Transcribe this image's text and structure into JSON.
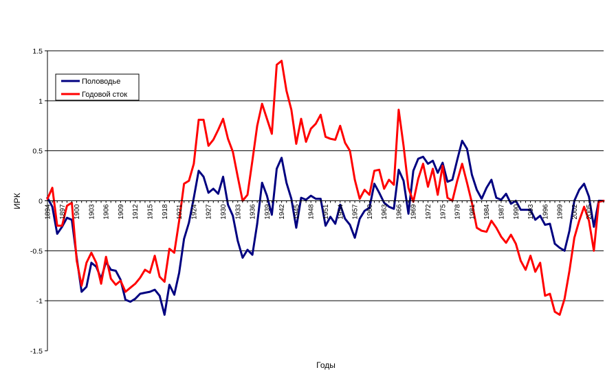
{
  "chart_data": {
    "type": "line",
    "title": "",
    "xlabel": "Годы",
    "ylabel": "ИРК",
    "ylim": [
      -1.5,
      1.5
    ],
    "yticks": [
      1.5,
      1,
      0.5,
      0,
      -0.5,
      -1,
      -1.5
    ],
    "ytick_labels": [
      "1.5",
      "1",
      "0.5",
      "0",
      "-0.5",
      "-1",
      "-1.5"
    ],
    "xlim": [
      1894,
      2008
    ],
    "xticks": [
      1894,
      1897,
      1900,
      1903,
      1906,
      1909,
      1912,
      1915,
      1918,
      1921,
      1924,
      1927,
      1930,
      1933,
      1936,
      1939,
      1942,
      1945,
      1948,
      1951,
      1954,
      1957,
      1960,
      1963,
      1966,
      1969,
      1972,
      1975,
      1978,
      1981,
      1984,
      1987,
      1990,
      1993,
      1996,
      1999,
      2002,
      2005
    ],
    "grid": true,
    "legend_position": "top-left",
    "colors": {
      "Половодье": "#000080",
      "Годовой сток": "#ff0000"
    },
    "series": [
      {
        "name": "Половодье",
        "x": [
          1894,
          1895,
          1896,
          1897,
          1898,
          1899,
          1900,
          1901,
          1902,
          1903,
          1904,
          1905,
          1906,
          1907,
          1908,
          1909,
          1910,
          1911,
          1912,
          1913,
          1914,
          1915,
          1916,
          1917,
          1918,
          1919,
          1920,
          1921,
          1922,
          1923,
          1924,
          1925,
          1926,
          1927,
          1928,
          1929,
          1930,
          1931,
          1932,
          1933,
          1934,
          1935,
          1936,
          1937,
          1938,
          1939,
          1940,
          1941,
          1942,
          1943,
          1944,
          1945,
          1946,
          1947,
          1948,
          1949,
          1950,
          1951,
          1952,
          1953,
          1954,
          1955,
          1956,
          1957,
          1958,
          1959,
          1960,
          1961,
          1962,
          1963,
          1964,
          1965,
          1966,
          1967,
          1968,
          1969,
          1970,
          1971,
          1972,
          1973,
          1974,
          1975,
          1976,
          1977,
          1978,
          1979,
          1980,
          1981,
          1982,
          1983,
          1984,
          1985,
          1986,
          1987,
          1988,
          1989,
          1990,
          1991,
          1992,
          1993,
          1994,
          1995,
          1996,
          1997,
          1998,
          1999,
          2000,
          2001,
          2002,
          2003,
          2004,
          2005,
          2006,
          2007,
          2008
        ],
        "values": [
          0.03,
          -0.06,
          -0.33,
          -0.26,
          -0.17,
          -0.19,
          -0.57,
          -0.91,
          -0.86,
          -0.62,
          -0.66,
          -0.78,
          -0.61,
          -0.69,
          -0.7,
          -0.79,
          -0.99,
          -1.01,
          -0.98,
          -0.93,
          -0.92,
          -0.91,
          -0.89,
          -0.95,
          -1.14,
          -0.84,
          -0.94,
          -0.72,
          -0.38,
          -0.22,
          0.03,
          0.3,
          0.24,
          0.08,
          0.12,
          0.07,
          0.24,
          -0.04,
          -0.15,
          -0.4,
          -0.57,
          -0.49,
          -0.54,
          -0.23,
          0.18,
          0.05,
          -0.14,
          0.32,
          0.43,
          0.18,
          0.02,
          -0.27,
          0.03,
          0.01,
          0.05,
          0.02,
          0.02,
          -0.25,
          -0.16,
          -0.23,
          -0.04,
          -0.18,
          -0.24,
          -0.37,
          -0.18,
          -0.1,
          -0.07,
          0.17,
          0.08,
          -0.02,
          -0.06,
          -0.08,
          0.31,
          0.2,
          -0.13,
          0.3,
          0.42,
          0.44,
          0.37,
          0.4,
          0.28,
          0.38,
          0.19,
          0.21,
          0.41,
          0.6,
          0.52,
          0.26,
          0.11,
          0.02,
          0.13,
          0.21,
          0.03,
          0.01,
          0.07,
          -0.03,
          0.0,
          -0.09,
          -0.09,
          -0.09,
          -0.19,
          -0.15,
          -0.24,
          -0.23,
          -0.43,
          -0.47,
          -0.5,
          -0.3,
          0.0,
          0.11,
          0.17,
          0.04,
          -0.26,
          0.0,
          0.0
        ]
      },
      {
        "name": "Годовой сток",
        "x": [
          1894,
          1895,
          1896,
          1897,
          1898,
          1899,
          1900,
          1901,
          1902,
          1903,
          1904,
          1905,
          1906,
          1907,
          1908,
          1909,
          1910,
          1911,
          1912,
          1913,
          1914,
          1915,
          1916,
          1917,
          1918,
          1919,
          1920,
          1921,
          1922,
          1923,
          1924,
          1925,
          1926,
          1927,
          1928,
          1929,
          1930,
          1931,
          1932,
          1933,
          1934,
          1935,
          1936,
          1937,
          1938,
          1939,
          1940,
          1941,
          1942,
          1943,
          1944,
          1945,
          1946,
          1947,
          1948,
          1949,
          1950,
          1951,
          1952,
          1953,
          1954,
          1955,
          1956,
          1957,
          1958,
          1959,
          1960,
          1961,
          1962,
          1963,
          1964,
          1965,
          1966,
          1967,
          1968,
          1969,
          1970,
          1971,
          1972,
          1973,
          1974,
          1975,
          1976,
          1977,
          1978,
          1979,
          1980,
          1981,
          1982,
          1983,
          1984,
          1985,
          1986,
          1987,
          1988,
          1989,
          1990,
          1991,
          1992,
          1993,
          1994,
          1995,
          1996,
          1997,
          1998,
          1999,
          2000,
          2001,
          2002,
          2003,
          2004,
          2005,
          2006,
          2007,
          2008
        ],
        "values": [
          0.02,
          0.13,
          -0.25,
          -0.25,
          -0.05,
          -0.02,
          -0.6,
          -0.85,
          -0.62,
          -0.52,
          -0.62,
          -0.83,
          -0.56,
          -0.78,
          -0.84,
          -0.8,
          -0.91,
          -0.87,
          -0.83,
          -0.77,
          -0.69,
          -0.72,
          -0.55,
          -0.76,
          -0.81,
          -0.48,
          -0.52,
          -0.2,
          0.17,
          0.2,
          0.37,
          0.81,
          0.81,
          0.55,
          0.61,
          0.71,
          0.82,
          0.62,
          0.49,
          0.24,
          0.0,
          0.06,
          0.4,
          0.75,
          0.97,
          0.82,
          0.67,
          1.36,
          1.4,
          1.1,
          0.91,
          0.57,
          0.82,
          0.59,
          0.72,
          0.77,
          0.86,
          0.64,
          0.62,
          0.61,
          0.75,
          0.58,
          0.5,
          0.21,
          0.02,
          0.11,
          0.06,
          0.3,
          0.31,
          0.12,
          0.21,
          0.16,
          0.91,
          0.55,
          0.13,
          -0.01,
          0.22,
          0.37,
          0.14,
          0.32,
          0.06,
          0.35,
          0.03,
          0.0,
          0.2,
          0.37,
          0.18,
          -0.02,
          -0.27,
          -0.3,
          -0.31,
          -0.2,
          -0.27,
          -0.36,
          -0.42,
          -0.34,
          -0.43,
          -0.6,
          -0.69,
          -0.55,
          -0.71,
          -0.62,
          -0.95,
          -0.93,
          -1.11,
          -1.14,
          -0.98,
          -0.7,
          -0.37,
          -0.2,
          -0.06,
          -0.2,
          -0.5,
          -0.01,
          0.0
        ]
      }
    ]
  }
}
